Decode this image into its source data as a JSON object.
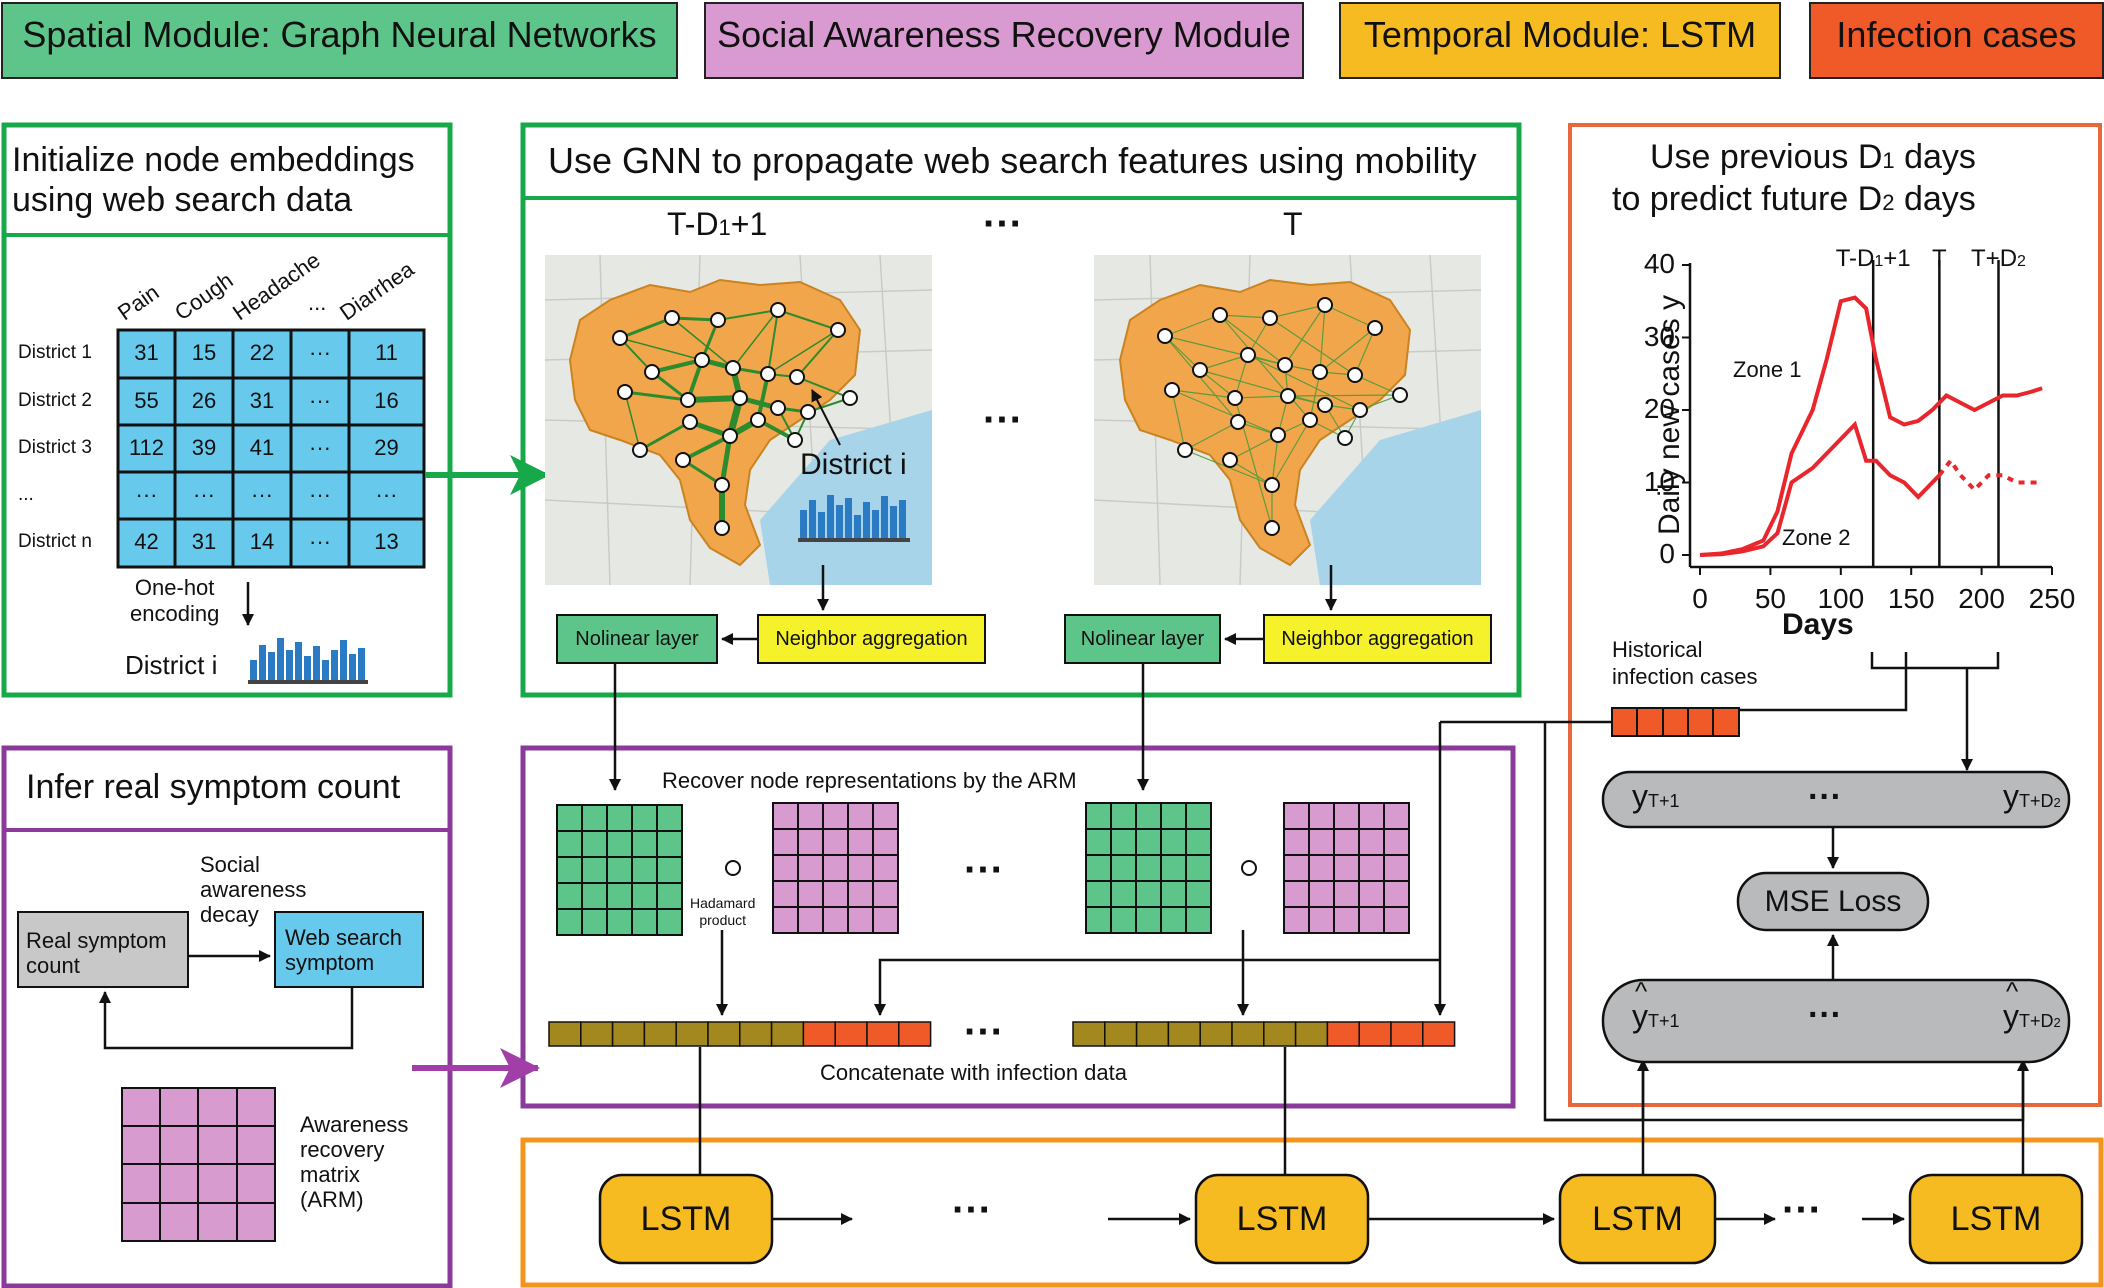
{
  "legend": [
    {
      "label": "Spatial Module: Graph Neural Networks",
      "color": "#5dc58a"
    },
    {
      "label": "Social Awareness Recovery Module",
      "color": "#d99ad1"
    },
    {
      "label": "Temporal Module: LSTM",
      "color": "#f7bb22"
    },
    {
      "label": "Infection cases",
      "color": "#f05a28"
    }
  ],
  "colors": {
    "green": "#17a84a",
    "purple": "#8b3a9c",
    "orange": "#f5941d",
    "red_orange": "#e8673c",
    "cell_blue": "#67c9ec",
    "cell_green": "#5dc58a",
    "cell_pink": "#d89bd0",
    "cell_olive": "#a3871f",
    "cell_red": "#f05a28",
    "lstm": "#f7bb22",
    "gray_pill": "#b9babc",
    "yellow_box": "#f5f12a",
    "curve_red": "#e8262c",
    "map_bg": "#f2a64c"
  },
  "init_panel": {
    "title_line1": "Initialize node embeddings",
    "title_line2": "using web search data",
    "columns": [
      "Pain",
      "Cough",
      "Headache",
      "...",
      "Diarrhea"
    ],
    "rows": [
      {
        "label": "District 1",
        "values": [
          "31",
          "15",
          "22",
          "···",
          "11"
        ]
      },
      {
        "label": "District 2",
        "values": [
          "55",
          "26",
          "31",
          "···",
          "16"
        ]
      },
      {
        "label": "District 3",
        "values": [
          "112",
          "39",
          "41",
          "···",
          "29"
        ]
      },
      {
        "label": "...",
        "values": [
          "···",
          "···",
          "···",
          "···",
          "···"
        ]
      },
      {
        "label": "District n",
        "values": [
          "42",
          "31",
          "14",
          "···",
          "13"
        ]
      }
    ],
    "onehot_line1": "One-hot",
    "onehot_line2": "encoding",
    "district_i": "District i"
  },
  "gnn_panel": {
    "title": "Use GNN to propagate web search features using mobility",
    "time_left_main": "T-D",
    "time_left_sub": "1",
    "time_left_suffix": "+1",
    "time_right": "T",
    "dots": "···",
    "district_i": "District i",
    "nonlinear_label": "Nolinear layer",
    "aggregation_label": "Neighbor aggregation"
  },
  "arm_infer_panel": {
    "title": "Infer real symptom count",
    "real_symptom_line1": "Real symptom",
    "real_symptom_line2": "count",
    "decay_line1": "Social",
    "decay_line2": "awareness",
    "decay_line3": "decay",
    "web_search_line1": "Web search",
    "web_search_line2": "symptom",
    "arm_line1": "Awareness",
    "arm_line2": "recovery",
    "arm_line3": "matrix",
    "arm_line4": "(ARM)"
  },
  "recover_panel": {
    "title": "Recover node representations by the ARM",
    "hadamard_symbol": "∘",
    "hadamard_line1": "Hadamard",
    "hadamard_line2": "product",
    "concat_label": "Concatenate with infection data",
    "dots": "···"
  },
  "predict_panel": {
    "title_line1_pre": "Use previous D",
    "title_line1_sub": "1",
    "title_line1_post": " days",
    "title_line2_pre": "to predict future D",
    "title_line2_sub": "2",
    "title_line2_post": " days",
    "historical_line1": "Historical",
    "historical_line2": "infection cases",
    "y_label": "y",
    "y_first_sub": "T+1",
    "y_last_sub": "T+D",
    "y_last_sub2": "2",
    "mse_label": "MSE Loss",
    "dots": "···"
  },
  "lstm": {
    "label": "LSTM",
    "dots": "···"
  },
  "chart_data": {
    "type": "line",
    "xlabel": "Days",
    "ylabel": "Daily new cases y",
    "xlim": [
      0,
      250
    ],
    "ylim": [
      0,
      40
    ],
    "xticks": [
      0,
      50,
      100,
      150,
      200,
      250
    ],
    "yticks": [
      0,
      10,
      20,
      30,
      40
    ],
    "vlines": [
      {
        "x": 123,
        "label_main": "T-D",
        "label_sub": "1",
        "label_suffix": "+1"
      },
      {
        "x": 170,
        "label_main": "T",
        "label_sub": "",
        "label_suffix": ""
      },
      {
        "x": 212,
        "label_main": "T+D",
        "label_sub": "2",
        "label_suffix": ""
      }
    ],
    "series": [
      {
        "name": "Zone 1",
        "x": [
          0,
          15,
          30,
          45,
          55,
          65,
          80,
          90,
          100,
          110,
          118,
          125,
          135,
          145,
          155,
          165,
          175,
          185,
          195,
          205,
          215,
          225,
          235,
          243
        ],
        "y": [
          0,
          0.2,
          0.8,
          2,
          6,
          14,
          20,
          27,
          35,
          35.5,
          34,
          27,
          19,
          18,
          18.5,
          20,
          22,
          21,
          20,
          21,
          22,
          22,
          22.5,
          23
        ]
      },
      {
        "name": "Zone 2",
        "x": [
          0,
          15,
          30,
          45,
          55,
          65,
          80,
          90,
          100,
          110,
          118,
          125,
          135,
          145,
          155,
          165,
          170
        ],
        "y": [
          0,
          0.1,
          0.5,
          1.2,
          3,
          10,
          12,
          14,
          16,
          18,
          13,
          13,
          11,
          10,
          8,
          10,
          11
        ]
      },
      {
        "name": "Zone 2 (predicted)",
        "dashed": true,
        "x": [
          170,
          178,
          185,
          195,
          205,
          215,
          225,
          235,
          243
        ],
        "y": [
          11,
          13,
          11,
          9,
          11,
          11,
          10,
          10,
          10
        ]
      }
    ]
  }
}
